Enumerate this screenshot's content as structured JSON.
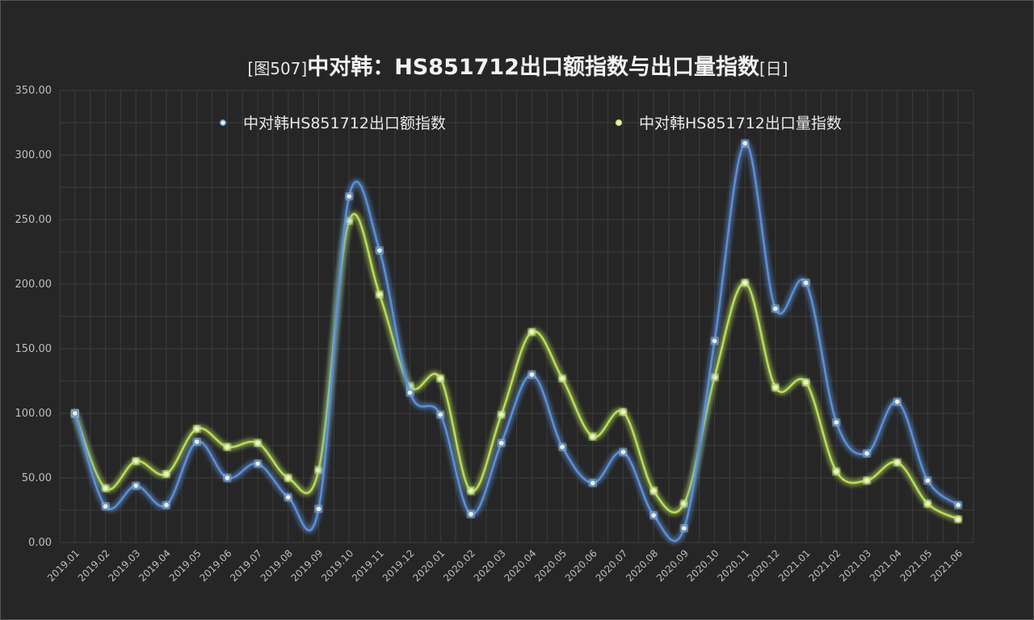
{
  "title": {
    "prefix": "[图507]",
    "main": "中对韩：HS851712出口额指数与出口量指数",
    "suffix": "[日]"
  },
  "colors": {
    "background": "#262626",
    "grid": "#3c3c3c",
    "axis_text": "#bfbfbf",
    "series_export_value": "#5b8fd6",
    "series_export_volume": "#b9dd5a"
  },
  "chart_data": {
    "type": "line",
    "smooth": true,
    "grid": true,
    "legend_position": "top",
    "ylim": [
      0,
      350
    ],
    "yticks": [
      "0.00",
      "50.00",
      "100.00",
      "150.00",
      "200.00",
      "250.00",
      "300.00",
      "350.00"
    ],
    "categories": [
      "2019.01",
      "2019.02",
      "2019.03",
      "2019.04",
      "2019.05",
      "2019.06",
      "2019.07",
      "2019.08",
      "2019.09",
      "2019.10",
      "2019.11",
      "2019.12",
      "2020.01",
      "2020.02",
      "2020.03",
      "2020.04",
      "2020.05",
      "2020.06",
      "2020.07",
      "2020.08",
      "2020.09",
      "2020.10",
      "2020.11",
      "2020.12",
      "2021.01",
      "2021.02",
      "2021.03",
      "2021.04",
      "2021.05",
      "2021.06"
    ],
    "series": [
      {
        "name": "中对韩HS851712出口额指数",
        "color": "#5b8fd6",
        "values": [
          100,
          28,
          44,
          29,
          78,
          50,
          61,
          35,
          26,
          268,
          226,
          116,
          99,
          22,
          77,
          130,
          74,
          46,
          70,
          21,
          11,
          156,
          309,
          181,
          201,
          93,
          69,
          109,
          48,
          29
        ]
      },
      {
        "name": "中对韩HS851712出口量指数",
        "color": "#b9dd5a",
        "values": [
          100,
          42,
          63,
          53,
          88,
          74,
          77,
          50,
          56,
          249,
          192,
          121,
          127,
          40,
          99,
          163,
          127,
          82,
          101,
          40,
          30,
          128,
          201,
          120,
          124,
          55,
          48,
          62,
          30,
          18
        ]
      }
    ]
  }
}
